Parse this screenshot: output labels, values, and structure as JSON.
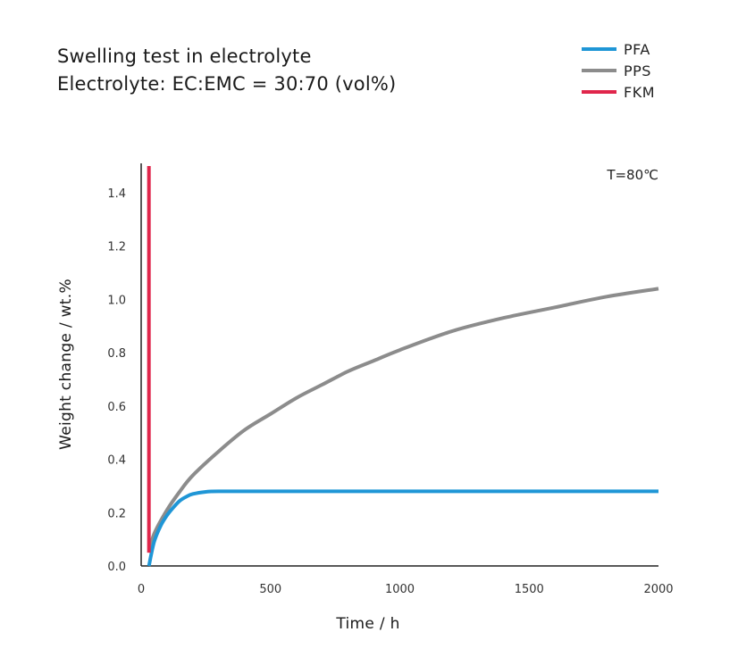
{
  "chart_data": {
    "type": "line",
    "title": "Swelling test in electrolyte",
    "subtitle": "Electrolyte: EC:EMC = 30:70 (vol%)",
    "xlabel": "Time / h",
    "ylabel": "Weight change / wt.%",
    "annotation": "T=80℃",
    "xlim": [
      0,
      2000
    ],
    "ylim": [
      0,
      1.5
    ],
    "x_ticks": [
      0,
      500,
      1000,
      1500,
      2000
    ],
    "y_ticks": [
      0.0,
      0.2,
      0.4,
      0.6,
      0.8,
      1.0,
      1.2,
      1.4
    ],
    "x_tick_labels": [
      "0",
      "500",
      "1000",
      "1500",
      "2000"
    ],
    "y_tick_labels": [
      "0.0",
      "0.2",
      "0.4",
      "0.6",
      "0.8",
      "1.0",
      "1.2",
      "1.4"
    ],
    "grid": false,
    "legend_position": "top-right",
    "series": [
      {
        "name": "PFA",
        "color": "#1f96d6",
        "points": [
          [
            30,
            0
          ],
          [
            50,
            0.09
          ],
          [
            75,
            0.15
          ],
          [
            100,
            0.19
          ],
          [
            125,
            0.22
          ],
          [
            150,
            0.245
          ],
          [
            175,
            0.26
          ],
          [
            200,
            0.27
          ],
          [
            250,
            0.278
          ],
          [
            300,
            0.28
          ],
          [
            500,
            0.28
          ],
          [
            1000,
            0.28
          ],
          [
            1500,
            0.28
          ],
          [
            2000,
            0.28
          ]
        ]
      },
      {
        "name": "PPS",
        "color": "#8c8c8c",
        "points": [
          [
            30,
            0.05
          ],
          [
            50,
            0.12
          ],
          [
            100,
            0.21
          ],
          [
            150,
            0.28
          ],
          [
            200,
            0.34
          ],
          [
            300,
            0.43
          ],
          [
            400,
            0.51
          ],
          [
            500,
            0.57
          ],
          [
            600,
            0.63
          ],
          [
            700,
            0.68
          ],
          [
            800,
            0.73
          ],
          [
            900,
            0.77
          ],
          [
            1000,
            0.81
          ],
          [
            1200,
            0.88
          ],
          [
            1400,
            0.93
          ],
          [
            1600,
            0.97
          ],
          [
            1800,
            1.01
          ],
          [
            2000,
            1.04
          ]
        ]
      },
      {
        "name": "FKM",
        "color": "#e0264b",
        "points": [
          [
            30,
            0.05
          ],
          [
            30,
            1.5
          ]
        ]
      }
    ]
  }
}
